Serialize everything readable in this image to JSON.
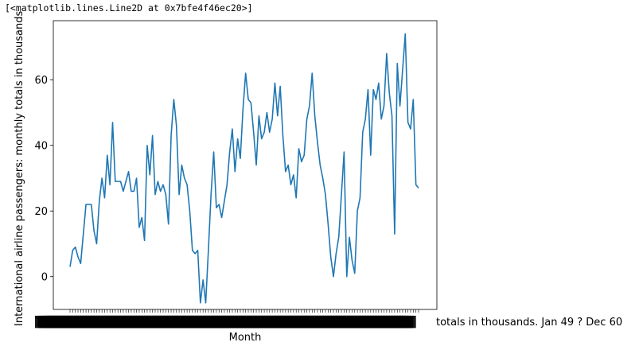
{
  "output_text": "[<matplotlib.lines.Line2D at 0x7bfe4f46ec20>]",
  "chart_data": {
    "type": "line",
    "title": "",
    "xlabel": "Month",
    "ylabel": "International airline passengers: monthly totals in thousands",
    "xtick_tail_label": "totals in thousands. Jan 49 ? Dec 60",
    "xtick_head_label": "195",
    "ylim": [
      -10,
      78
    ],
    "yticks": [
      0,
      20,
      40,
      60
    ],
    "grid": false,
    "line_color": "#1f77b4",
    "values": [
      3,
      8,
      9,
      6,
      4,
      13,
      22,
      22,
      22,
      14,
      10,
      23,
      30,
      24,
      37,
      28,
      47,
      29,
      29,
      29,
      26,
      29,
      32,
      26,
      26,
      30,
      15,
      18,
      11,
      40,
      31,
      43,
      25,
      29,
      26,
      28,
      25,
      16,
      43,
      54,
      46,
      25,
      34,
      30,
      28,
      20,
      8,
      7,
      8,
      -8,
      -1,
      -8,
      8,
      25,
      38,
      21,
      22,
      18,
      23,
      28,
      38,
      45,
      32,
      42,
      36,
      51,
      62,
      54,
      53,
      44,
      34,
      49,
      42,
      44,
      50,
      44,
      48,
      59,
      49,
      58,
      43,
      32,
      34,
      28,
      31,
      24,
      39,
      35,
      37,
      48,
      52,
      62,
      49,
      41,
      34,
      30,
      25,
      16,
      6,
      0,
      7,
      12,
      25,
      38,
      0,
      12,
      5,
      1,
      20,
      24,
      44,
      48,
      57,
      37,
      57,
      54,
      59,
      48,
      52,
      68,
      56,
      49,
      13,
      65,
      52,
      63,
      74,
      47,
      45,
      54,
      28,
      27
    ]
  }
}
